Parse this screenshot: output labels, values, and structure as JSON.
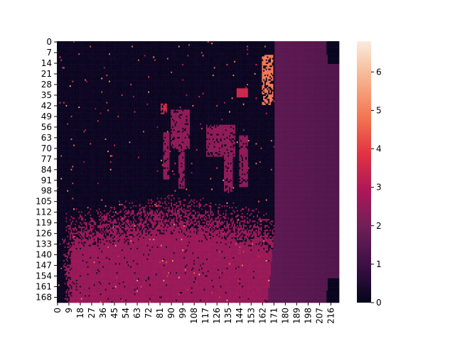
{
  "chart_data": {
    "type": "heatmap",
    "title": "",
    "xlabel": "",
    "ylabel": "",
    "grid": false,
    "colormap": "rocket",
    "colormap_stops": [
      "#03051a",
      "#3b0f46",
      "#701f57",
      "#ad1759",
      "#e13342",
      "#f37651",
      "#f6b48f",
      "#faebdd"
    ],
    "value_range": [
      0,
      6.8
    ],
    "colorbar_ticks": [
      "0",
      "1",
      "2",
      "3",
      "4",
      "5",
      "6"
    ],
    "colorbar_tick_values": [
      0,
      1,
      2,
      3,
      4,
      5,
      6
    ],
    "grid_size": {
      "cols": 223,
      "rows": 172
    },
    "x_tick_labels": [
      "0",
      "9",
      "18",
      "27",
      "36",
      "45",
      "54",
      "63",
      "72",
      "81",
      "90",
      "99",
      "108",
      "117",
      "126",
      "135",
      "144",
      "153",
      "162",
      "171",
      "180",
      "189",
      "198",
      "207",
      "216"
    ],
    "y_tick_labels": [
      "0",
      "7",
      "14",
      "21",
      "28",
      "35",
      "42",
      "49",
      "56",
      "63",
      "70",
      "77",
      "84",
      "91",
      "98",
      "105",
      "112",
      "119",
      "126",
      "133",
      "140",
      "147",
      "154",
      "161",
      "168"
    ],
    "regions": [
      {
        "name": "background",
        "value": 0.1
      },
      {
        "name": "floor-cloud",
        "value": 2.6
      },
      {
        "name": "right-wall",
        "value": 1.6
      },
      {
        "name": "chair",
        "value": 2.4
      },
      {
        "name": "table-top-spot",
        "value": 3.5
      },
      {
        "name": "far-shelf",
        "value": 4.5
      }
    ]
  }
}
